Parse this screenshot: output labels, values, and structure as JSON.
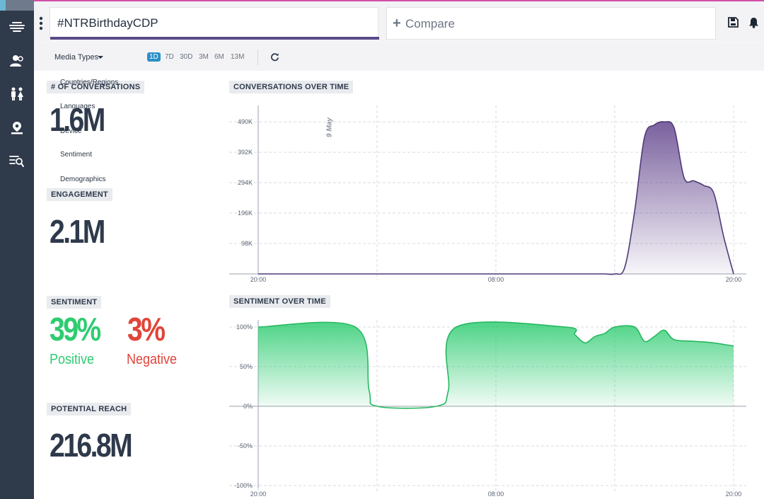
{
  "header": {
    "search_value": "#NTRBirthdayCDP",
    "compare_label": "Compare"
  },
  "toolbar": {
    "media_types_label": "Media Types",
    "ranges": [
      "1D",
      "7D",
      "30D",
      "3M",
      "6M",
      "13M"
    ],
    "active_range": "1D"
  },
  "dropdown": {
    "items": [
      "Countries/Regions",
      "Languages",
      "Device",
      "Sentiment",
      "Demographics"
    ]
  },
  "metrics": {
    "conversations_label": "# OF CONVERSATIONS",
    "conversations_value": "1.6M",
    "engagement_label": "ENGAGEMENT",
    "engagement_value": "2.1M",
    "sentiment_label": "SENTIMENT",
    "positive_pct": "39%",
    "positive_label": "Positive",
    "negative_pct": "3%",
    "negative_label": "Negative",
    "reach_label": "POTENTIAL REACH",
    "reach_value": "216.8M"
  },
  "colors": {
    "accent": "#5c4a86",
    "positive": "#2ecc71",
    "negative": "#e0453a",
    "sidebar": "#2f3a4b",
    "active_range": "#2a8fc6"
  },
  "chart_data": [
    {
      "type": "area",
      "title": "CONVERSATIONS OVER TIME",
      "x_ticks": [
        "20:00",
        "08:00",
        "20:00"
      ],
      "y_ticks": [
        "98K",
        "196K",
        "294K",
        "392K",
        "490K"
      ],
      "annotation": "9 May",
      "series": [
        {
          "x": [
            0,
            6,
            12,
            14,
            16,
            16.2,
            16.5,
            17,
            17.5,
            18,
            18.5,
            19,
            19.5,
            20,
            20.5,
            21,
            21.5,
            22,
            22.5,
            23,
            23.5,
            24
          ],
          "values": [
            0,
            0,
            0,
            0,
            0,
            0,
            0,
            0,
            0,
            0,
            20,
            200,
            440,
            480,
            490,
            470,
            310,
            300,
            285,
            260,
            120,
            0
          ]
        }
      ],
      "color": "#6b4f93",
      "ylim": [
        0,
        520
      ]
    },
    {
      "type": "area",
      "title": "SENTIMENT OVER TIME",
      "x_ticks": [
        "20:00",
        "08:00",
        "20:00"
      ],
      "y_ticks": [
        "100%",
        "50%",
        "0%",
        "-50%",
        "-100%"
      ],
      "series": [
        {
          "x": [
            0,
            4.9,
            5.6,
            6,
            9,
            9.6,
            10,
            15.5,
            16,
            16.5,
            17,
            17.5,
            18,
            19,
            19.5,
            20,
            20.5,
            21,
            22,
            23,
            24
          ],
          "values": [
            100,
            100,
            20,
            0,
            0,
            20,
            100,
            100,
            90,
            80,
            88,
            92,
            100,
            100,
            82,
            88,
            96,
            84,
            82,
            80,
            76
          ]
        }
      ],
      "color": "#2ecc71",
      "ylim": [
        -100,
        100
      ]
    }
  ]
}
